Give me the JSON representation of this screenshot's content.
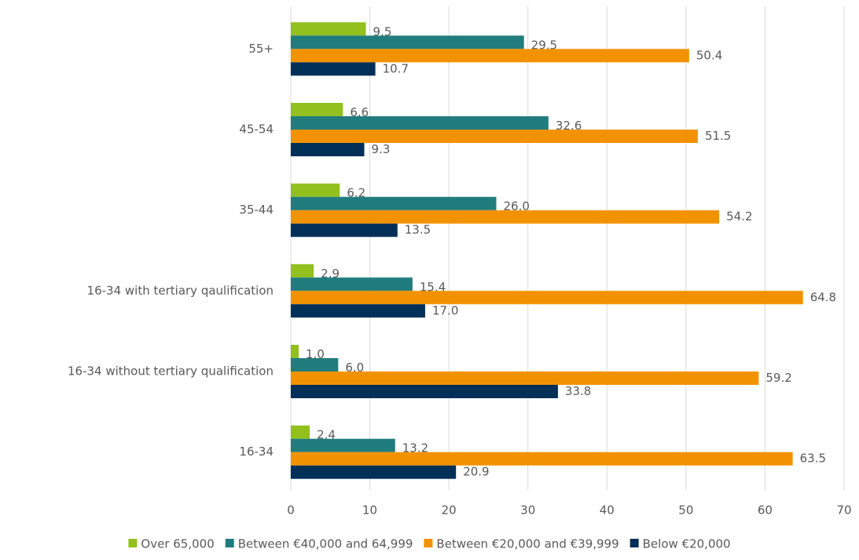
{
  "chart_data": {
    "type": "hbar",
    "categories": [
      "16-34",
      "16-34 without tertiary qualification",
      "16-34 with tertiary qaulification",
      "35-44",
      "45-54",
      "55+"
    ],
    "series": [
      {
        "name": "Over 65,000",
        "color": "#92c01f",
        "values": [
          2.4,
          1.0,
          2.9,
          6.2,
          6.6,
          9.5
        ],
        "value_labels": [
          "2.4",
          "1.0",
          "2.9",
          "6.2",
          "6.6",
          "9.5"
        ]
      },
      {
        "name": "Between €40,000 and 64,999",
        "color": "#217c7e",
        "values": [
          13.2,
          6.0,
          15.4,
          26.0,
          32.6,
          29.5
        ],
        "value_labels": [
          "13.2",
          "6.0",
          "15.4",
          "26.0",
          "32.6",
          "29.5"
        ]
      },
      {
        "name": "Between €20,000 and €39,999",
        "color": "#f39200",
        "values": [
          63.5,
          59.2,
          64.8,
          54.2,
          51.5,
          50.4
        ],
        "value_labels": [
          "63.5",
          "59.2",
          "64.8",
          "54.2",
          "51.5",
          "50.4"
        ]
      },
      {
        "name": "Below €20,000",
        "color": "#003057",
        "values": [
          20.9,
          33.8,
          17.0,
          13.5,
          9.3,
          10.7
        ],
        "value_labels": [
          "20.9",
          "33.8",
          "17.0",
          "13.5",
          "9.3",
          "10.7"
        ]
      }
    ],
    "xlim": [
      0,
      70
    ],
    "xticks": [
      0,
      10,
      20,
      30,
      40,
      50,
      60,
      70
    ],
    "grid": true,
    "legend": "bottom"
  }
}
